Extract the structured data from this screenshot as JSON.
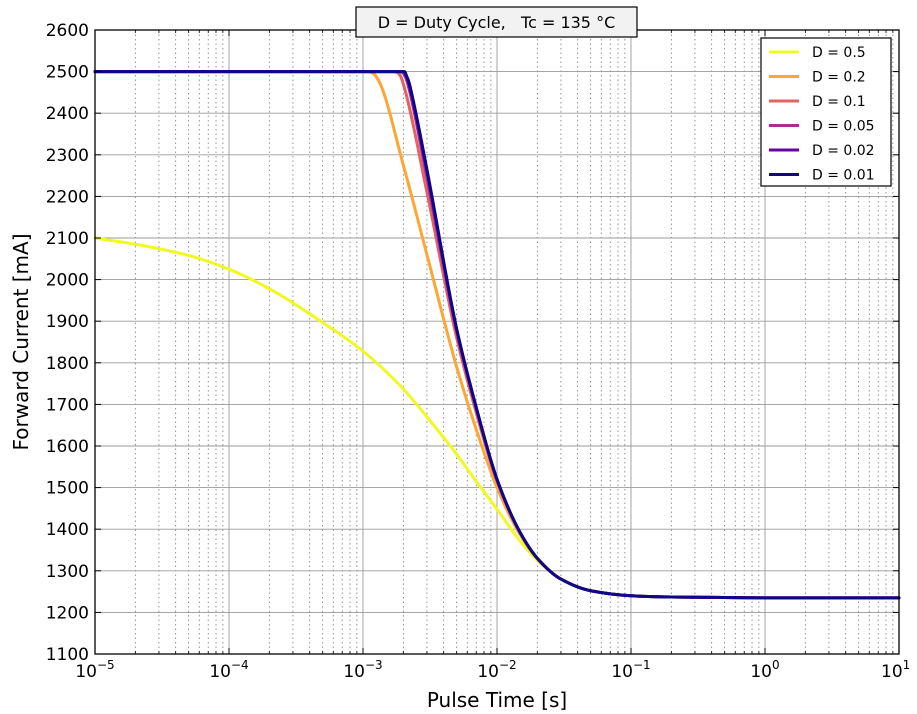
{
  "chart_data": {
    "type": "line",
    "title": "D = Duty Cycle,   Tc = 135 °C",
    "xlabel": "Pulse Time [s]",
    "ylabel": "Forward Current [mA]",
    "x_scale": "log",
    "xlim": [
      1e-05,
      10
    ],
    "ylim": [
      1100,
      2600
    ],
    "x_ticks": [
      {
        "value": 1e-05,
        "base": "10",
        "exp": "−5"
      },
      {
        "value": 0.0001,
        "base": "10",
        "exp": "−4"
      },
      {
        "value": 0.001,
        "base": "10",
        "exp": "−3"
      },
      {
        "value": 0.01,
        "base": "10",
        "exp": "−2"
      },
      {
        "value": 0.1,
        "base": "10",
        "exp": "−1"
      },
      {
        "value": 1,
        "base": "10",
        "exp": "0"
      },
      {
        "value": 10,
        "base": "10",
        "exp": "1"
      }
    ],
    "y_ticks": [
      1100,
      1200,
      1300,
      1400,
      1500,
      1600,
      1700,
      1800,
      1900,
      2000,
      2100,
      2200,
      2300,
      2400,
      2500,
      2600
    ],
    "grid": true,
    "legend_position": "top-right",
    "series": [
      {
        "name": "D = 0.5",
        "color": "#f0f921",
        "x": [
          1e-05,
          2e-05,
          5e-05,
          0.0001,
          0.0002,
          0.0005,
          0.001,
          0.002,
          0.003,
          0.005,
          0.007,
          0.01,
          0.015,
          0.02,
          0.03,
          0.05,
          0.1,
          0.2,
          0.5,
          1,
          10
        ],
        "y": [
          2100,
          2085,
          2058,
          2025,
          1978,
          1897,
          1828,
          1737,
          1670,
          1580,
          1515,
          1448,
          1370,
          1325,
          1280,
          1252,
          1240,
          1237,
          1236,
          1235,
          1235
        ]
      },
      {
        "name": "D = 0.2",
        "color": "#fca636",
        "x": [
          1e-05,
          0.0011,
          0.0012,
          0.0013,
          0.002,
          0.003,
          0.005,
          0.007,
          0.01,
          0.015,
          0.02,
          0.03,
          0.05,
          0.1,
          0.2,
          1,
          10
        ],
        "y": [
          2500,
          2500,
          2495,
          2480,
          2275,
          2060,
          1790,
          1640,
          1500,
          1385,
          1330,
          1280,
          1252,
          1240,
          1237,
          1235,
          1235
        ]
      },
      {
        "name": "D = 0.1",
        "color": "#e16462",
        "x": [
          1e-05,
          0.0017,
          0.0018,
          0.0019,
          0.002,
          0.003,
          0.005,
          0.007,
          0.01,
          0.015,
          0.02,
          0.03,
          0.05,
          0.1,
          0.2,
          1,
          10
        ],
        "y": [
          2500,
          2500,
          2498,
          2490,
          2470,
          2210,
          1860,
          1680,
          1515,
          1390,
          1330,
          1280,
          1252,
          1240,
          1237,
          1235,
          1235
        ]
      },
      {
        "name": "D = 0.05",
        "color": "#b12a90",
        "x": [
          1e-05,
          0.0019,
          0.002,
          0.0021,
          0.0022,
          0.003,
          0.005,
          0.007,
          0.01,
          0.015,
          0.02,
          0.03,
          0.05,
          0.1,
          0.2,
          1,
          10
        ],
        "y": [
          2500,
          2500,
          2496,
          2482,
          2460,
          2245,
          1875,
          1690,
          1518,
          1390,
          1330,
          1280,
          1252,
          1240,
          1237,
          1235,
          1235
        ]
      },
      {
        "name": "D = 0.02",
        "color": "#6a00a8",
        "x": [
          1e-05,
          0.002,
          0.0021,
          0.0022,
          0.0023,
          0.003,
          0.005,
          0.007,
          0.01,
          0.015,
          0.02,
          0.03,
          0.05,
          0.1,
          0.2,
          1,
          10
        ],
        "y": [
          2500,
          2500,
          2490,
          2470,
          2445,
          2260,
          1880,
          1692,
          1520,
          1390,
          1330,
          1280,
          1252,
          1240,
          1237,
          1235,
          1235
        ]
      },
      {
        "name": "D = 0.01",
        "color": "#0d0887",
        "x": [
          1e-05,
          0.00205,
          0.0021,
          0.0022,
          0.0023,
          0.003,
          0.005,
          0.007,
          0.01,
          0.015,
          0.02,
          0.03,
          0.05,
          0.1,
          0.2,
          1,
          10
        ],
        "y": [
          2500,
          2500,
          2492,
          2475,
          2450,
          2265,
          1882,
          1693,
          1520,
          1390,
          1330,
          1280,
          1252,
          1240,
          1237,
          1235,
          1235
        ]
      }
    ]
  }
}
